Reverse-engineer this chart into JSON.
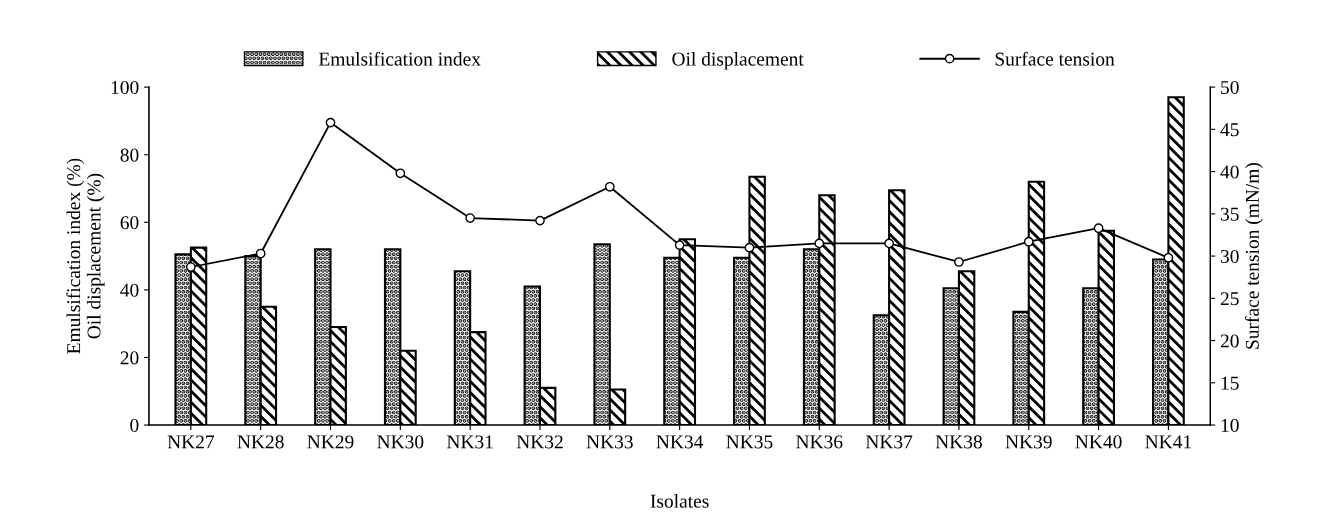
{
  "chart_data": {
    "type": "bar",
    "xlabel": "Isolates",
    "ylabel": "Emulsification index (%)\nOil displacement (%)",
    "y2label": "Surface tension (mN/m)",
    "categories": [
      "NK27",
      "NK28",
      "NK29",
      "NK30",
      "NK31",
      "NK32",
      "NK33",
      "NK34",
      "NK35",
      "NK36",
      "NK37",
      "NK38",
      "NK39",
      "NK40",
      "NK41"
    ],
    "series": [
      {
        "name": "Emulsification index",
        "color": "#000000",
        "values": [
          50.5,
          50,
          52,
          52,
          45.5,
          41,
          53.5,
          49.5,
          49.5,
          52,
          32.5,
          40.5,
          33.5,
          40.5,
          49
        ]
      },
      {
        "name": "Oil displacement",
        "color": "#000000",
        "values": [
          52.5,
          35,
          29,
          22,
          27.5,
          11,
          10.5,
          55,
          73.5,
          68,
          69.5,
          45.5,
          72,
          57.5,
          97
        ]
      },
      {
        "name": "Surface tension",
        "type": "line",
        "axis": "y2",
        "color": "#000000",
        "values": [
          28.7,
          30.3,
          45.8,
          39.8,
          34.5,
          34.2,
          38.2,
          31.3,
          31.0,
          31.5,
          31.5,
          29.3,
          31.7,
          33.3,
          29.8
        ]
      }
    ],
    "ylim": [
      0,
      100
    ],
    "yticks": [
      0,
      20,
      40,
      60,
      80,
      100
    ],
    "y2lim": [
      10,
      50
    ],
    "y2ticks": [
      10,
      15,
      20,
      25,
      30,
      35,
      40,
      45,
      50
    ],
    "legend": "top",
    "grid": false,
    "marker": "circle",
    "line_style": "solid"
  }
}
